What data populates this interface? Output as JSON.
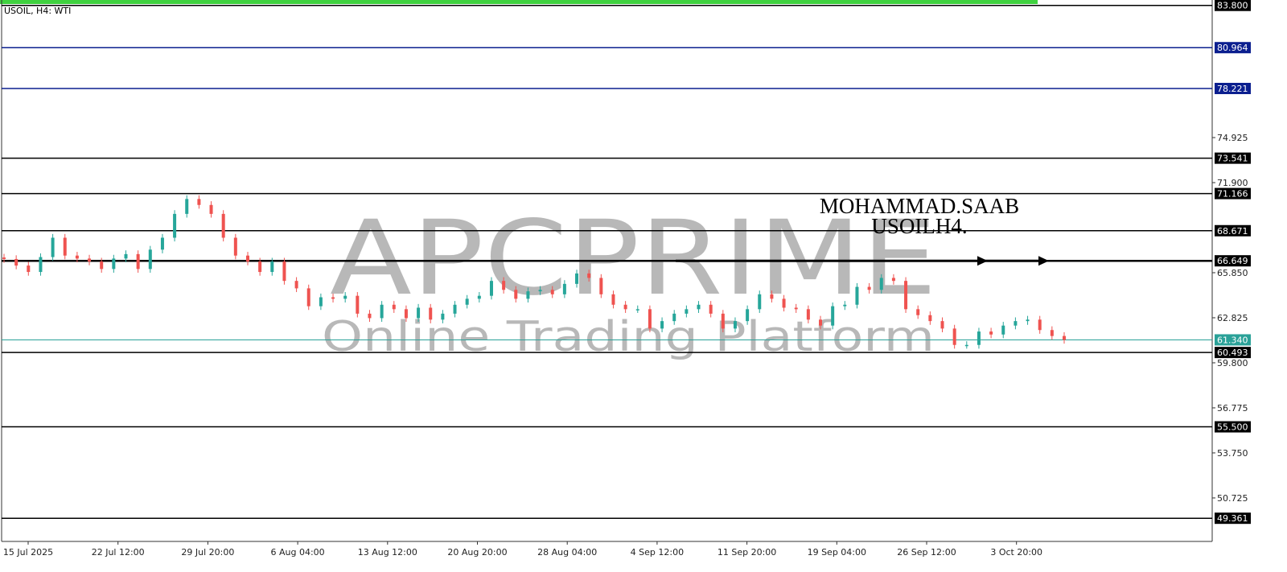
{
  "header": {
    "title": "USOIL, H4:  WTI"
  },
  "watermark": {
    "brand": "APCPRIME",
    "tagline": "Online Trading Platform"
  },
  "annotation": {
    "line1": "MOHAMMAD.SAAB",
    "line2": "USOILH4."
  },
  "colors": {
    "bull": "#26a69a",
    "bear": "#ef5350",
    "level": "#000000",
    "blue_level": "#0b1f8f",
    "bid": "#2aa198",
    "progress": "#3fd13f",
    "watermark": "#b3b3b3"
  },
  "chart_data": {
    "type": "candlestick",
    "symbol": "USOIL",
    "timeframe": "H4",
    "ylim": [
      48.2,
      84.1
    ],
    "y_ticks": [
      "74.925",
      "71.900",
      "65.850",
      "62.825",
      "59.800",
      "56.775",
      "53.750",
      "50.725"
    ],
    "x_ticks": [
      "15 Jul 2025",
      "22 Jul 12:00",
      "29 Jul 20:00",
      "6 Aug 04:00",
      "13 Aug 12:00",
      "20 Aug 20:00",
      "28 Aug 04:00",
      "4 Sep 12:00",
      "11 Sep 20:00",
      "19 Sep 04:00",
      "26 Sep 12:00",
      "3 Oct 20:00"
    ],
    "closes": [
      66.77,
      66.33,
      65.9,
      66.9,
      68.2,
      67.0,
      66.8,
      66.6,
      66.1,
      66.8,
      67.1,
      66.1,
      67.4,
      68.2,
      69.8,
      70.8,
      70.4,
      69.8,
      68.2,
      67.0,
      66.6,
      65.9,
      66.6,
      65.3,
      64.8,
      63.6,
      64.2,
      64.1,
      64.3,
      63.1,
      62.8,
      63.7,
      63.4,
      62.8,
      63.5,
      62.7,
      63.1,
      63.7,
      64.1,
      64.3,
      65.3,
      64.7,
      64.1,
      64.6,
      64.7,
      64.4,
      65.1,
      65.8,
      65.5,
      64.4,
      63.7,
      63.4,
      63.4,
      62.1,
      62.6,
      63.1,
      63.4,
      63.7,
      63.1,
      62.1,
      62.6,
      63.4,
      64.4,
      64.1,
      63.5,
      63.4,
      62.7,
      62.3,
      63.6,
      63.7,
      64.9,
      64.7,
      65.5,
      65.3,
      63.4,
      63.0,
      62.6,
      62.1,
      61.0,
      61.0,
      61.9,
      61.7,
      62.3,
      62.6,
      62.7,
      62.0,
      61.6,
      61.34
    ],
    "levels": [
      {
        "price": 83.8,
        "label": "83.800",
        "color": "#000000"
      },
      {
        "price": 80.964,
        "label": "80.964",
        "color": "#0b1f8f"
      },
      {
        "price": 78.221,
        "label": "78.221",
        "color": "#0b1f8f"
      },
      {
        "price": 73.541,
        "label": "73.541",
        "color": "#000000"
      },
      {
        "price": 71.166,
        "label": "71.166",
        "color": "#000000"
      },
      {
        "price": 68.671,
        "label": "68.671",
        "color": "#000000"
      },
      {
        "price": 66.649,
        "label": "66.649",
        "color": "#000000"
      },
      {
        "price": 60.493,
        "label": "60.493",
        "color": "#000000"
      },
      {
        "price": 55.5,
        "label": "55.500",
        "color": "#000000"
      },
      {
        "price": 49.361,
        "label": "49.361",
        "color": "#000000"
      }
    ],
    "bid": {
      "price": 61.34,
      "label": "61.340"
    },
    "arrow_level": 66.649
  }
}
